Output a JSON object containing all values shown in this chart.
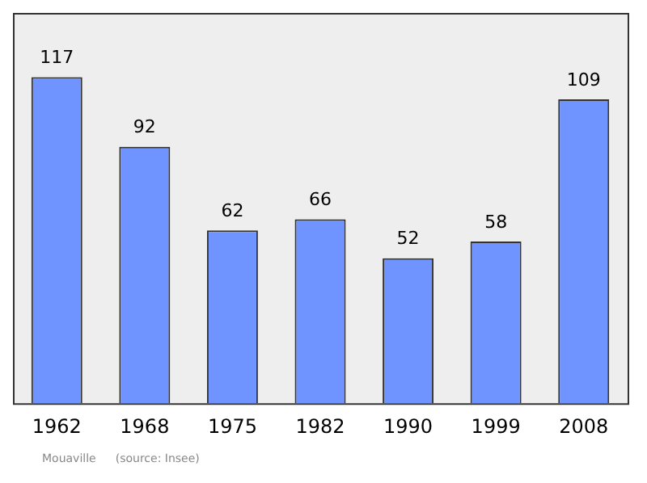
{
  "chart_data": {
    "type": "bar",
    "categories": [
      "1962",
      "1968",
      "1975",
      "1982",
      "1990",
      "1999",
      "2008"
    ],
    "values": [
      117,
      92,
      62,
      66,
      52,
      58,
      109
    ],
    "color": "#7094ff",
    "data_labels": true,
    "grid": false,
    "legend": false,
    "annotations": [
      "Mouaville",
      "(source: Insee)"
    ]
  }
}
